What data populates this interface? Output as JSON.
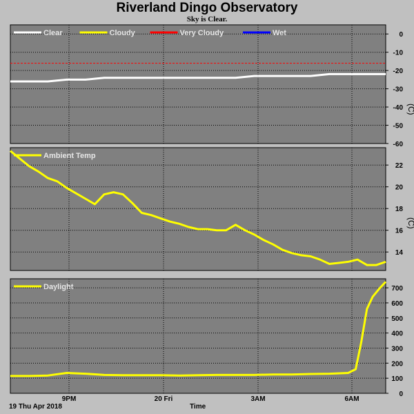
{
  "header": {
    "title": "Riverland Dingo Observatory",
    "subtitle": "Sky is Clear."
  },
  "footer": {
    "date": "19 Thu Apr 2018",
    "time_label": "Time"
  },
  "colors": {
    "background": "#c0c0c0",
    "plot_bg": "#808080",
    "grid": "#000000",
    "clear": "#ffffff",
    "cloudy": "#ffff00",
    "very_cloudy": "#ff0000",
    "wet": "#0000ff"
  },
  "chart_data": [
    {
      "type": "line",
      "name": "sky",
      "unit": "(C)",
      "ylim": [
        -60,
        5
      ],
      "yticks": [
        0,
        -10,
        -20,
        -30,
        -40,
        -50,
        -60
      ],
      "legend": [
        "Clear",
        "Cloudy",
        "Very Cloudy",
        "Wet"
      ],
      "threshold": {
        "label": "Very Cloudy",
        "value": -16
      },
      "x_hours": [
        0,
        1,
        2,
        3,
        4,
        5,
        6,
        7,
        8,
        9,
        10,
        11,
        12,
        13,
        14,
        15,
        16,
        17,
        18,
        19,
        20
      ],
      "series": [
        {
          "name": "Clear",
          "values": [
            -26,
            -26,
            -26,
            -25,
            -25,
            -24,
            -24,
            -24,
            -24,
            -24,
            -24,
            -24,
            -24,
            -23,
            -23,
            -23,
            -23,
            -22,
            -22,
            -22,
            -22
          ]
        }
      ],
      "grid": true
    },
    {
      "type": "line",
      "name": "ambient",
      "unit": "(C)",
      "ylim": [
        12.3,
        23.6
      ],
      "yticks": [
        14,
        16,
        18,
        20,
        22
      ],
      "legend": [
        "Ambient Temp"
      ],
      "x_hours": [
        0,
        0.5,
        1,
        1.5,
        2,
        2.5,
        3,
        3.5,
        4,
        4.5,
        5,
        5.5,
        6,
        6.5,
        7,
        7.5,
        8,
        8.5,
        9,
        9.5,
        10,
        10.5,
        11,
        11.5,
        12,
        12.5,
        13,
        13.5,
        14,
        14.5,
        15,
        15.5,
        16,
        16.5,
        17,
        17.5,
        18,
        18.5,
        19,
        19.5,
        20
      ],
      "series": [
        {
          "name": "Ambient Temp",
          "values": [
            23.3,
            22.6,
            21.9,
            21.4,
            20.8,
            20.5,
            19.9,
            19.4,
            18.9,
            18.4,
            19.3,
            19.5,
            19.3,
            18.5,
            17.6,
            17.4,
            17.1,
            16.8,
            16.6,
            16.3,
            16.1,
            16.1,
            16.0,
            16.0,
            16.5,
            16.0,
            15.6,
            15.1,
            14.7,
            14.2,
            13.9,
            13.7,
            13.6,
            13.3,
            12.9,
            13.0,
            13.1,
            13.3,
            12.8,
            12.8,
            13.1
          ]
        }
      ],
      "grid": true
    },
    {
      "type": "line",
      "name": "daylight",
      "unit": "",
      "ylim": [
        0,
        760
      ],
      "yticks": [
        0,
        100,
        200,
        300,
        400,
        500,
        600,
        700
      ],
      "legend": [
        "Daylight"
      ],
      "x_hours": [
        0,
        1,
        2,
        3,
        4,
        5,
        6,
        7,
        8,
        9,
        10,
        11,
        12,
        13,
        14,
        15,
        16,
        17,
        18,
        18.4,
        18.7,
        19,
        19.3,
        19.7,
        20
      ],
      "series": [
        {
          "name": "Daylight",
          "values": [
            115,
            115,
            118,
            135,
            130,
            122,
            120,
            120,
            120,
            118,
            120,
            122,
            122,
            122,
            125,
            125,
            128,
            130,
            135,
            160,
            340,
            560,
            640,
            700,
            740
          ]
        }
      ],
      "grid": true
    }
  ],
  "x_axis": {
    "hours_span": 20,
    "tick_labels": [
      {
        "label": "9PM",
        "hour": 3
      },
      {
        "label": "20 Fri",
        "hour": 8
      },
      {
        "label": "3AM",
        "hour": 13.5
      },
      {
        "label": "6AM",
        "hour": 18.5
      }
    ]
  }
}
